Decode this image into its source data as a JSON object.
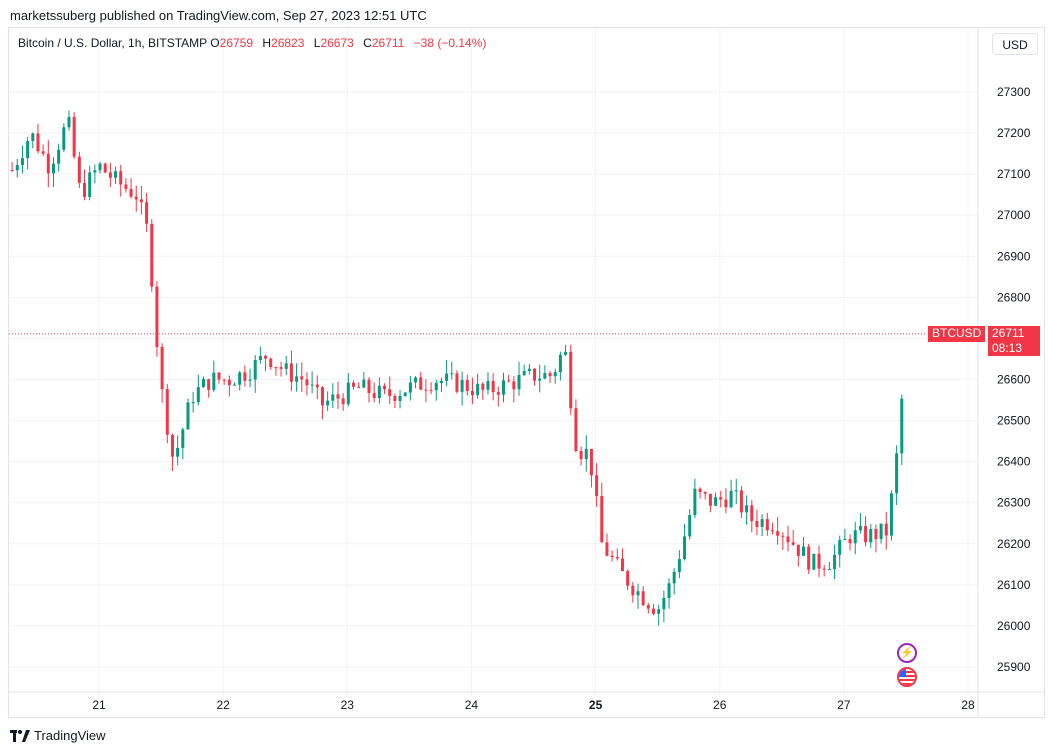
{
  "header": {
    "publisher_line": "marketssuberg published on TradingView.com, Sep 27, 2023 12:51 UTC"
  },
  "legend": {
    "symbol": "Bitcoin / U.S. Dollar, 1h, BITSTAMP",
    "o_label": "O",
    "o_value": "26759",
    "h_label": "H",
    "h_value": "26823",
    "l_label": "L",
    "l_value": "26673",
    "c_label": "C",
    "c_value": "26711",
    "change": "−38 (−0.14%)"
  },
  "currency_button": "USD",
  "price_badge": {
    "symbol": "BTCUSD",
    "price": "26711",
    "countdown": "08:13"
  },
  "footer": {
    "brand": "TradingView"
  },
  "colors": {
    "up": "#089981",
    "down": "#f23645",
    "grid": "#f0f3fa"
  },
  "icons": [
    "flash-icon",
    "us-flag-icon",
    "tradingview-logo-icon"
  ],
  "chart_data": {
    "type": "candlestick",
    "ylim": [
      25800,
      27400
    ],
    "y_ticks": [
      25900,
      26000,
      26100,
      26200,
      26300,
      26400,
      26500,
      26600,
      26700,
      26800,
      26900,
      27000,
      27100,
      27200,
      27300
    ],
    "x_ticks": [
      {
        "label": "21",
        "day": 21
      },
      {
        "label": "22",
        "day": 22
      },
      {
        "label": "23",
        "day": 23
      },
      {
        "label": "24",
        "day": 24
      },
      {
        "label": "25",
        "day": 25,
        "bold": true
      },
      {
        "label": "26",
        "day": 26
      },
      {
        "label": "27",
        "day": 27
      },
      {
        "label": "28",
        "day": 28
      }
    ],
    "last_price": 26711,
    "close_path": [
      [
        20.3,
        27110
      ],
      [
        20.45,
        27200
      ],
      [
        20.6,
        27120
      ],
      [
        20.75,
        27230
      ],
      [
        20.85,
        27050
      ],
      [
        21.0,
        27120
      ],
      [
        21.15,
        27080
      ],
      [
        21.3,
        27050
      ],
      [
        21.4,
        26950
      ],
      [
        21.45,
        26750
      ],
      [
        21.5,
        26580
      ],
      [
        21.6,
        26400
      ],
      [
        21.75,
        26560
      ],
      [
        21.9,
        26600
      ],
      [
        22.05,
        26600
      ],
      [
        22.2,
        26620
      ],
      [
        22.35,
        26660
      ],
      [
        22.5,
        26620
      ],
      [
        22.65,
        26600
      ],
      [
        22.8,
        26540
      ],
      [
        22.95,
        26560
      ],
      [
        23.1,
        26580
      ],
      [
        23.3,
        26560
      ],
      [
        23.5,
        26580
      ],
      [
        23.7,
        26600
      ],
      [
        23.9,
        26590
      ],
      [
        24.1,
        26570
      ],
      [
        24.3,
        26590
      ],
      [
        24.5,
        26610
      ],
      [
        24.65,
        26610
      ],
      [
        24.75,
        26680
      ],
      [
        24.85,
        26430
      ],
      [
        24.95,
        26420
      ],
      [
        25.05,
        26200
      ],
      [
        25.2,
        26130
      ],
      [
        25.35,
        26080
      ],
      [
        25.5,
        26040
      ],
      [
        25.6,
        26100
      ],
      [
        25.7,
        26200
      ],
      [
        25.8,
        26320
      ],
      [
        25.95,
        26300
      ],
      [
        26.1,
        26320
      ],
      [
        26.25,
        26260
      ],
      [
        26.45,
        26250
      ],
      [
        26.6,
        26200
      ],
      [
        26.75,
        26150
      ],
      [
        26.9,
        26160
      ],
      [
        27.05,
        26220
      ],
      [
        27.2,
        26220
      ],
      [
        27.35,
        26230
      ],
      [
        27.45,
        26470
      ],
      [
        27.5,
        26711
      ]
    ]
  }
}
